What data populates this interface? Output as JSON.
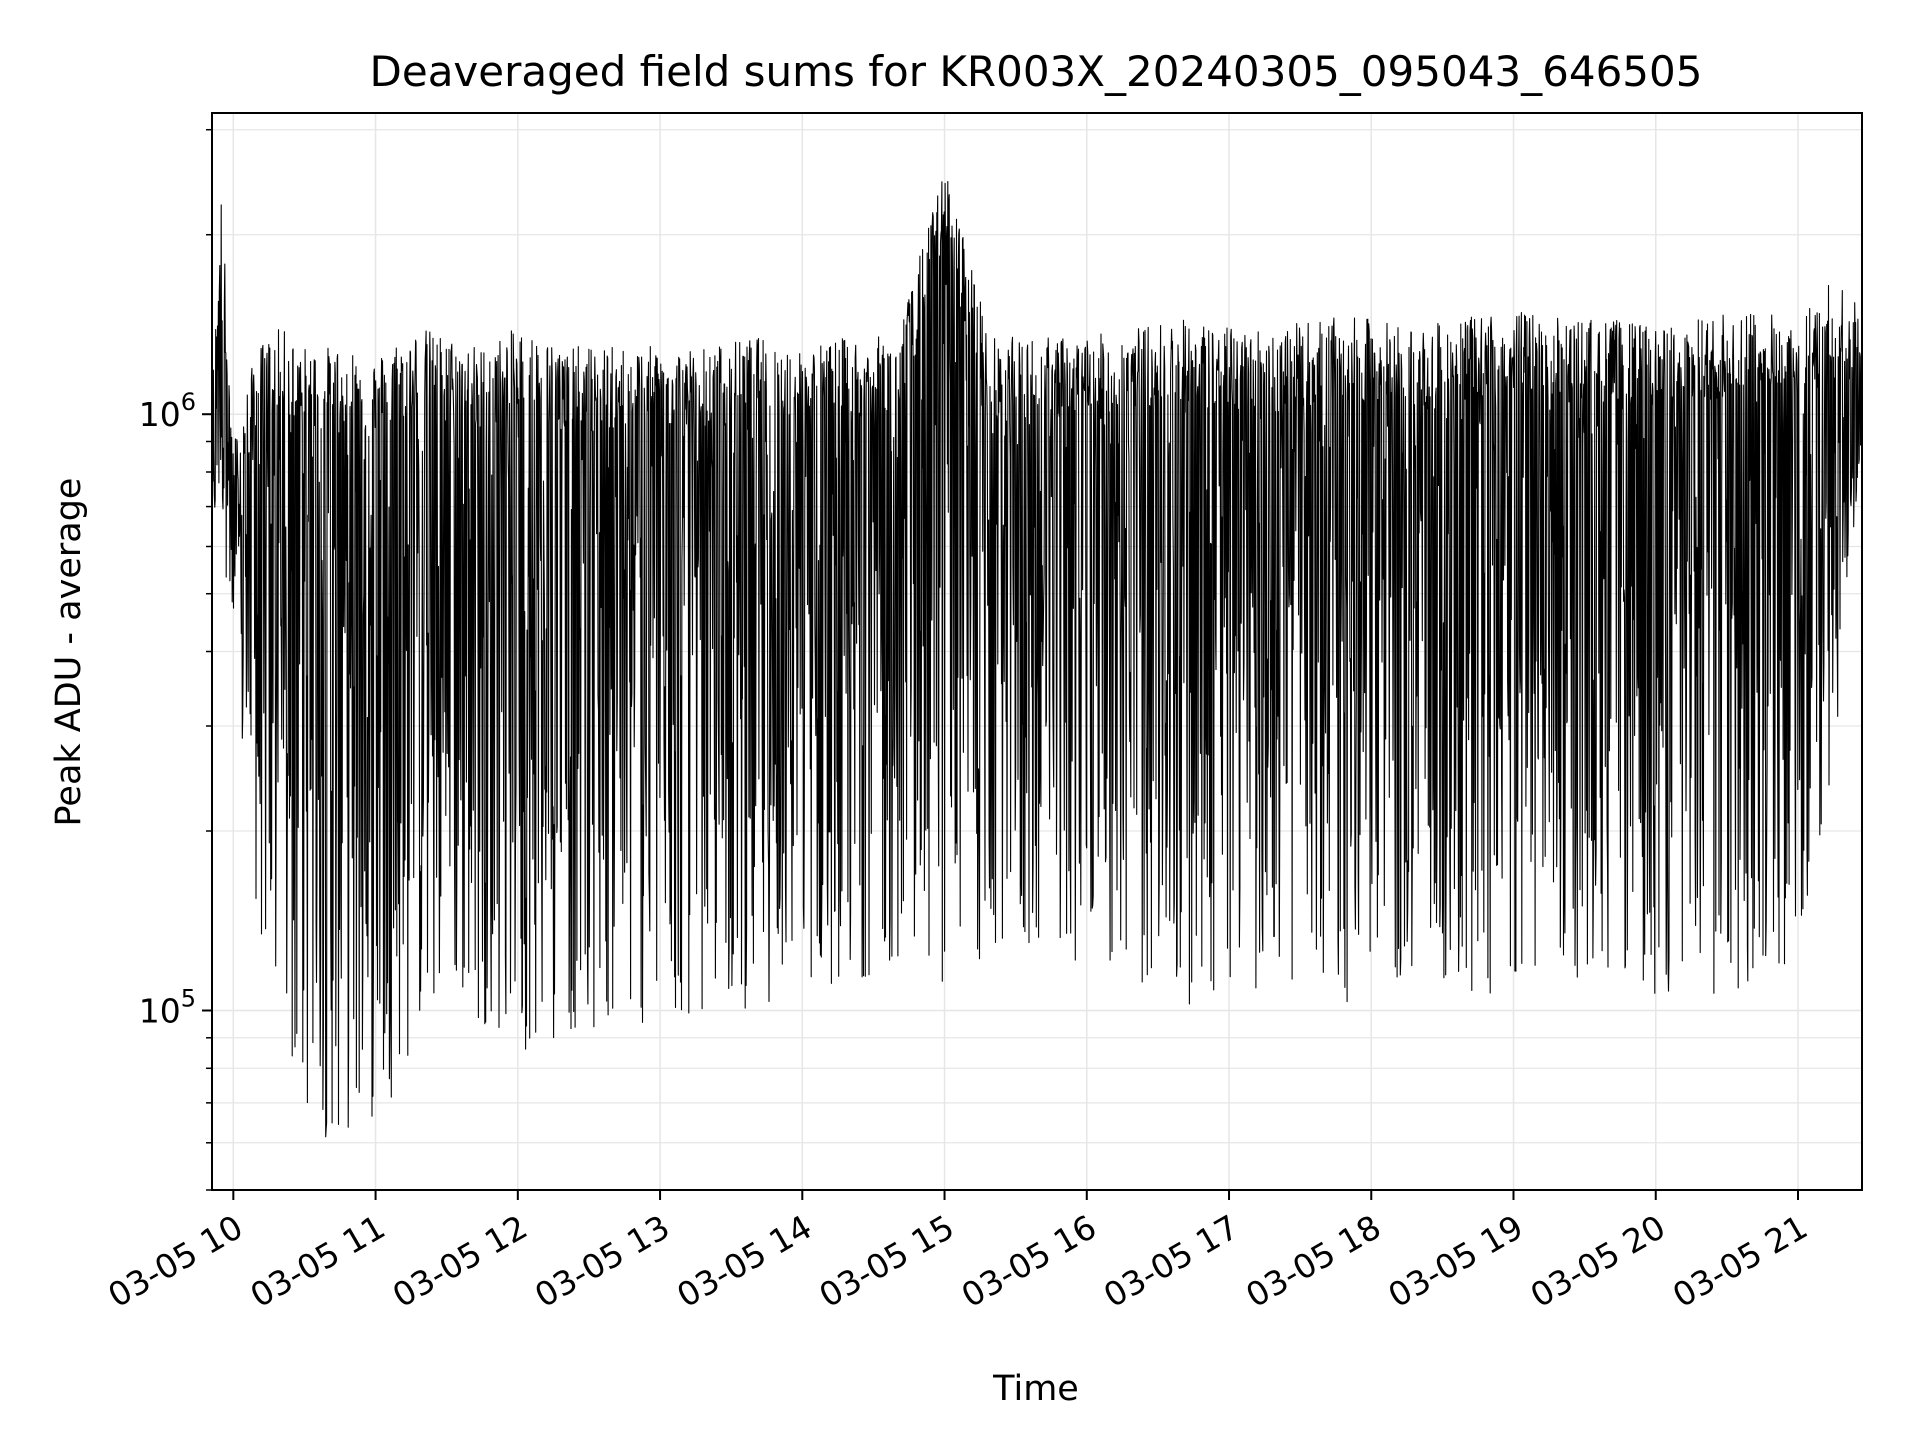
{
  "chart_data": {
    "type": "line",
    "title": "Deaveraged field sums for KR003X_20240305_095043_646505",
    "xlabel": "Time",
    "ylabel": "Peak ADU - average",
    "y_scale": "log",
    "grid": true,
    "legend": "none",
    "line_color": "#000000",
    "grid_color": "#e6e6e6",
    "x_range": [
      "2024-03-05 09:51",
      "2024-03-05 21:27"
    ],
    "y_range": [
      50000,
      3200000
    ],
    "x_ticks": [
      "03-05 10",
      "03-05 11",
      "03-05 12",
      "03-05 13",
      "03-05 14",
      "03-05 15",
      "03-05 16",
      "03-05 17",
      "03-05 18",
      "03-05 19",
      "03-05 20",
      "03-05 21"
    ],
    "y_ticks": [
      {
        "base": "10",
        "exp": "5",
        "value": 100000
      },
      {
        "base": "10",
        "exp": "6",
        "value": 1000000
      }
    ],
    "series": [
      {
        "x": [
          "2024-03-05 09:51",
          "2024-03-05 09:55",
          "2024-03-05 10:00",
          "2024-03-05 10:10",
          "2024-03-05 10:20",
          "2024-03-05 10:30",
          "2024-03-05 10:40",
          "2024-03-05 10:50",
          "2024-03-05 11:00",
          "2024-03-05 11:10",
          "2024-03-05 11:20",
          "2024-03-05 11:30",
          "2024-03-05 11:45",
          "2024-03-05 12:00",
          "2024-03-05 12:20",
          "2024-03-05 12:40",
          "2024-03-05 13:00",
          "2024-03-05 13:20",
          "2024-03-05 13:40",
          "2024-03-05 14:00",
          "2024-03-05 14:20",
          "2024-03-05 14:40",
          "2024-03-05 15:00",
          "2024-03-05 15:20",
          "2024-03-05 15:40",
          "2024-03-05 16:00",
          "2024-03-05 16:20",
          "2024-03-05 16:40",
          "2024-03-05 17:00",
          "2024-03-05 17:20",
          "2024-03-05 17:40",
          "2024-03-05 18:00",
          "2024-03-05 18:20",
          "2024-03-05 18:40",
          "2024-03-05 19:00",
          "2024-03-05 19:20",
          "2024-03-05 19:40",
          "2024-03-05 20:00",
          "2024-03-05 20:20",
          "2024-03-05 20:40",
          "2024-03-05 21:00",
          "2024-03-05 21:15",
          "2024-03-05 21:27"
        ],
        "y_upper": [
          1100000,
          2400000,
          900000,
          1300000,
          1400000,
          1300000,
          1300000,
          1300000,
          1250000,
          1350000,
          1400000,
          1350000,
          1300000,
          1400000,
          1300000,
          1300000,
          1300000,
          1300000,
          1350000,
          1300000,
          1350000,
          1350000,
          2600000,
          1350000,
          1350000,
          1350000,
          1400000,
          1450000,
          1400000,
          1400000,
          1450000,
          1450000,
          1400000,
          1450000,
          1500000,
          1450000,
          1450000,
          1400000,
          1450000,
          1500000,
          1450000,
          1700000,
          1500000
        ],
        "y_lower": [
          620000,
          700000,
          350000,
          140000,
          80000,
          65000,
          60000,
          62000,
          65000,
          75000,
          90000,
          100000,
          95000,
          85000,
          90000,
          95000,
          90000,
          100000,
          100000,
          110000,
          110000,
          120000,
          110000,
          115000,
          125000,
          120000,
          110000,
          100000,
          105000,
          110000,
          100000,
          105000,
          110000,
          95000,
          100000,
          110000,
          115000,
          105000,
          100000,
          110000,
          120000,
          250000,
          900000
        ]
      }
    ]
  }
}
